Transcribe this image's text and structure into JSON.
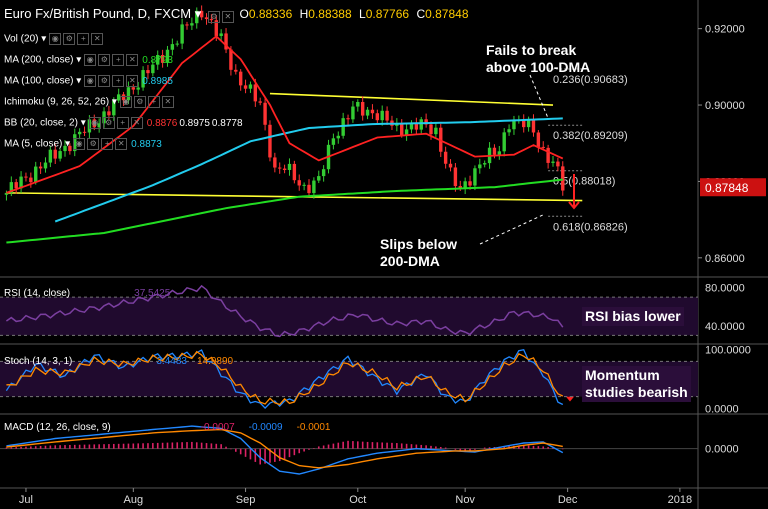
{
  "header": {
    "title": "Euro Fx/British Pound, D, FXCM",
    "dropdown_glyph": "▾",
    "open_label": "O",
    "open": "0.88336",
    "high_label": "H",
    "high": "0.88388",
    "low_label": "L",
    "low": "0.87766",
    "close_label": "C",
    "close": "0.87848"
  },
  "indicators": [
    {
      "label": "Vol (20)",
      "value": "",
      "color": "#ffffff"
    },
    {
      "label": "MA (200, close)",
      "value": "0.8793",
      "color": "#22dd22"
    },
    {
      "label": "MA (100, close)",
      "value": "0.8985",
      "color": "#22ccee"
    },
    {
      "label": "Ichimoku (9, 26, 52, 26)",
      "value": "",
      "color": "#ffffff"
    },
    {
      "label": "BB (20, close, 2)",
      "value": "0.8876",
      "value2": "0.8975",
      "value3": "0.8778",
      "color": "#ff3333"
    },
    {
      "label": "MA (5, close)",
      "value": "0.8873",
      "color": "#22ccee"
    }
  ],
  "sub_panels": {
    "rsi": {
      "label": "RSI (14, close)",
      "value": "37.5425",
      "color": "#7b3fa0"
    },
    "stoch": {
      "label": "Stoch (14, 3, 1)",
      "value1": "3.4483",
      "value2": "14.9890",
      "color1": "#2288ff",
      "color2": "#ff8800"
    },
    "macd": {
      "label": "MACD (12, 26, close, 9)",
      "value1": "-0.0007",
      "value2": "-0.0009",
      "value3": "-0.0001",
      "color1": "#dd2266",
      "color2": "#2288ff",
      "color3": "#ff8800"
    }
  },
  "annotations": {
    "fails": [
      "Fails to break",
      "above 100-DMA"
    ],
    "slips": [
      "Slips below",
      "200-DMA"
    ],
    "rsi": "RSI bias lower",
    "momentum": [
      "Momentum",
      "studies bearish"
    ]
  },
  "price_tag": {
    "value": "0.87848",
    "color": "#cc1111"
  },
  "colors": {
    "bull": "#33cc33",
    "bear": "#ff3333",
    "ma200": "#22dd22",
    "ma100": "#22ccee",
    "ma5_bb": "#ff2222",
    "trendline": "#ffff33",
    "fib_line": "#888888",
    "rsi_line": "#7b3fa0",
    "panel_fill": "#200a2e"
  },
  "chart_data": [
    {
      "type": "candlestick",
      "title": "Euro Fx/British Pound, D, FXCM",
      "x_ticks": [
        "Jul",
        "Aug",
        "Sep",
        "Oct",
        "Nov",
        "Dec",
        "2018"
      ],
      "x_tick_index": [
        4,
        26,
        49,
        72,
        94,
        115,
        138
      ],
      "y_ticks": [
        "0.92000",
        "0.90000",
        "0.88000",
        "0.86000"
      ],
      "ylim": [
        0.8555,
        0.9275
      ],
      "n_bars": 152,
      "waypoints": [
        [
          0,
          0.877
        ],
        [
          10,
          0.887
        ],
        [
          20,
          0.8975
        ],
        [
          30,
          0.91
        ],
        [
          36,
          0.919
        ],
        [
          40,
          0.925
        ],
        [
          44,
          0.917
        ],
        [
          47,
          0.908
        ],
        [
          52,
          0.9
        ],
        [
          55,
          0.883
        ],
        [
          57,
          0.8835
        ],
        [
          61,
          0.8785
        ],
        [
          64,
          0.88
        ],
        [
          67,
          0.892
        ],
        [
          71,
          0.899
        ],
        [
          76,
          0.898
        ],
        [
          80,
          0.8935
        ],
        [
          84,
          0.895
        ],
        [
          88,
          0.893
        ],
        [
          91,
          0.882
        ],
        [
          93,
          0.877
        ],
        [
          97,
          0.885
        ],
        [
          101,
          0.888
        ],
        [
          103,
          0.896
        ],
        [
          106,
          0.895
        ],
        [
          108,
          0.893
        ],
        [
          110,
          0.888
        ],
        [
          112,
          0.885
        ],
        [
          113,
          0.882
        ],
        [
          114,
          0.8785
        ]
      ],
      "moving_averages": {
        "ma200": [
          [
            0,
            0.864
          ],
          [
            20,
            0.8665
          ],
          [
            45,
            0.873
          ],
          [
            60,
            0.876
          ],
          [
            80,
            0.8775
          ],
          [
            100,
            0.8785
          ],
          [
            114,
            0.8805
          ]
        ],
        "ma100": [
          [
            10,
            0.8695
          ],
          [
            30,
            0.879
          ],
          [
            40,
            0.8845
          ],
          [
            50,
            0.8905
          ],
          [
            62,
            0.894
          ],
          [
            75,
            0.895
          ],
          [
            95,
            0.8955
          ],
          [
            114,
            0.8965
          ]
        ],
        "ma5_bb": [
          [
            0,
            0.877
          ],
          [
            15,
            0.884
          ],
          [
            26,
            0.8945
          ],
          [
            36,
            0.911
          ],
          [
            43,
            0.918
          ],
          [
            48,
            0.912
          ],
          [
            54,
            0.9
          ],
          [
            58,
            0.89
          ],
          [
            64,
            0.8855
          ],
          [
            70,
            0.8885
          ],
          [
            76,
            0.8915
          ],
          [
            86,
            0.8925
          ],
          [
            96,
            0.8865
          ],
          [
            104,
            0.887
          ],
          [
            108,
            0.8895
          ],
          [
            114,
            0.886
          ]
        ]
      },
      "trendlines": [
        {
          "name": "resistance",
          "points": [
            [
              54,
              0.903
            ],
            [
              112,
              0.9
            ]
          ]
        },
        {
          "name": "support",
          "points": [
            [
              0,
              0.877
            ],
            [
              118,
              0.875
            ]
          ]
        }
      ],
      "fib_levels": [
        {
          "label": "0.236(0.90683)",
          "value": 0.90683
        },
        {
          "label": "0.382(0.89209)",
          "value": 0.89209
        },
        {
          "label": "0.5(0.88018)",
          "value": 0.88018
        },
        {
          "label": "0.618(0.86826)",
          "value": 0.86826
        }
      ]
    },
    {
      "type": "line",
      "title": "RSI (14, close)",
      "y_ticks": [
        "80.0000",
        "40.0000"
      ],
      "ylim": [
        22,
        90
      ],
      "levels": [
        70,
        30
      ],
      "waypoints": [
        [
          0,
          45
        ],
        [
          10,
          52
        ],
        [
          20,
          60
        ],
        [
          30,
          70
        ],
        [
          36,
          76
        ],
        [
          40,
          80
        ],
        [
          44,
          64
        ],
        [
          48,
          50
        ],
        [
          52,
          38
        ],
        [
          56,
          30
        ],
        [
          60,
          34
        ],
        [
          66,
          45
        ],
        [
          72,
          52
        ],
        [
          76,
          46
        ],
        [
          80,
          42
        ],
        [
          86,
          45
        ],
        [
          90,
          36
        ],
        [
          94,
          32
        ],
        [
          100,
          44
        ],
        [
          104,
          54
        ],
        [
          108,
          52
        ],
        [
          112,
          48
        ],
        [
          114,
          38
        ]
      ]
    },
    {
      "type": "line",
      "title": "Stoch (14, 3, 1)",
      "y_ticks": [
        "100.0000",
        "0.0000"
      ],
      "ylim": [
        -8,
        108
      ],
      "levels": [
        80,
        20
      ],
      "series": [
        {
          "waypoints": [
            [
              0,
              30
            ],
            [
              6,
              75
            ],
            [
              12,
              55
            ],
            [
              18,
              90
            ],
            [
              24,
              70
            ],
            [
              30,
              88
            ],
            [
              36,
              90
            ],
            [
              40,
              95
            ],
            [
              44,
              60
            ],
            [
              48,
              25
            ],
            [
              52,
              5
            ],
            [
              58,
              12
            ],
            [
              64,
              50
            ],
            [
              70,
              85
            ],
            [
              76,
              50
            ],
            [
              80,
              30
            ],
            [
              86,
              60
            ],
            [
              90,
              20
            ],
            [
              94,
              10
            ],
            [
              98,
              50
            ],
            [
              102,
              80
            ],
            [
              106,
              100
            ],
            [
              108,
              75
            ],
            [
              110,
              60
            ],
            [
              112,
              30
            ],
            [
              114,
              3
            ]
          ]
        },
        {
          "waypoints": [
            [
              0,
              35
            ],
            [
              6,
              65
            ],
            [
              12,
              60
            ],
            [
              18,
              82
            ],
            [
              24,
              75
            ],
            [
              30,
              85
            ],
            [
              36,
              88
            ],
            [
              40,
              92
            ],
            [
              44,
              70
            ],
            [
              48,
              35
            ],
            [
              52,
              12
            ],
            [
              58,
              10
            ],
            [
              64,
              40
            ],
            [
              70,
              78
            ],
            [
              76,
              58
            ],
            [
              80,
              35
            ],
            [
              86,
              55
            ],
            [
              90,
              28
            ],
            [
              94,
              14
            ],
            [
              98,
              42
            ],
            [
              102,
              72
            ],
            [
              106,
              92
            ],
            [
              108,
              80
            ],
            [
              110,
              65
            ],
            [
              112,
              40
            ],
            [
              114,
              15
            ]
          ]
        }
      ]
    },
    {
      "type": "histogram+line",
      "title": "MACD (12, 26, close, 9)",
      "y_ticks": [
        "0.0000"
      ],
      "ylim": [
        -0.0068,
        0.0058
      ],
      "histogram": [
        [
          0,
          0.0002
        ],
        [
          10,
          0.0006
        ],
        [
          20,
          0.0008
        ],
        [
          30,
          0.001
        ],
        [
          38,
          0.0012
        ],
        [
          44,
          0.0008
        ],
        [
          48,
          -0.001
        ],
        [
          52,
          -0.0028
        ],
        [
          56,
          -0.0022
        ],
        [
          60,
          -0.0008
        ],
        [
          64,
          0.0004
        ],
        [
          70,
          0.0014
        ],
        [
          74,
          0.0012
        ],
        [
          80,
          0.001
        ],
        [
          86,
          0.0006
        ],
        [
          90,
          0.0002
        ],
        [
          94,
          -0.0006
        ],
        [
          98,
          0.0002
        ],
        [
          102,
          0.0004
        ],
        [
          106,
          0.0006
        ],
        [
          110,
          0.0004
        ],
        [
          114,
          -0.0001
        ]
      ],
      "series": [
        {
          "waypoints": [
            [
              0,
              0.0005
            ],
            [
              10,
              0.0018
            ],
            [
              20,
              0.0026
            ],
            [
              30,
              0.0034
            ],
            [
              38,
              0.004
            ],
            [
              44,
              0.0036
            ],
            [
              48,
              0.0018
            ],
            [
              52,
              -0.0016
            ],
            [
              56,
              -0.004
            ],
            [
              60,
              -0.0045
            ],
            [
              64,
              -0.0036
            ],
            [
              70,
              -0.0018
            ],
            [
              76,
              -0.0008
            ],
            [
              84,
              0.0
            ],
            [
              92,
              -0.0004
            ],
            [
              96,
              -0.0006
            ],
            [
              102,
              0.0004
            ],
            [
              106,
              0.001
            ],
            [
              110,
              0.0012
            ],
            [
              114,
              -0.0007
            ]
          ]
        },
        {
          "waypoints": [
            [
              0,
              0.0003
            ],
            [
              10,
              0.0012
            ],
            [
              20,
              0.002
            ],
            [
              30,
              0.0028
            ],
            [
              38,
              0.0032
            ],
            [
              44,
              0.0034
            ],
            [
              48,
              0.0028
            ],
            [
              52,
              0.001
            ],
            [
              56,
              -0.0016
            ],
            [
              60,
              -0.003
            ],
            [
              64,
              -0.0034
            ],
            [
              70,
              -0.0028
            ],
            [
              76,
              -0.0018
            ],
            [
              84,
              -0.0008
            ],
            [
              92,
              -0.0004
            ],
            [
              96,
              -0.0004
            ],
            [
              102,
              0.0
            ],
            [
              106,
              0.0006
            ],
            [
              110,
              0.001
            ],
            [
              114,
              0.0004
            ]
          ]
        }
      ]
    }
  ]
}
